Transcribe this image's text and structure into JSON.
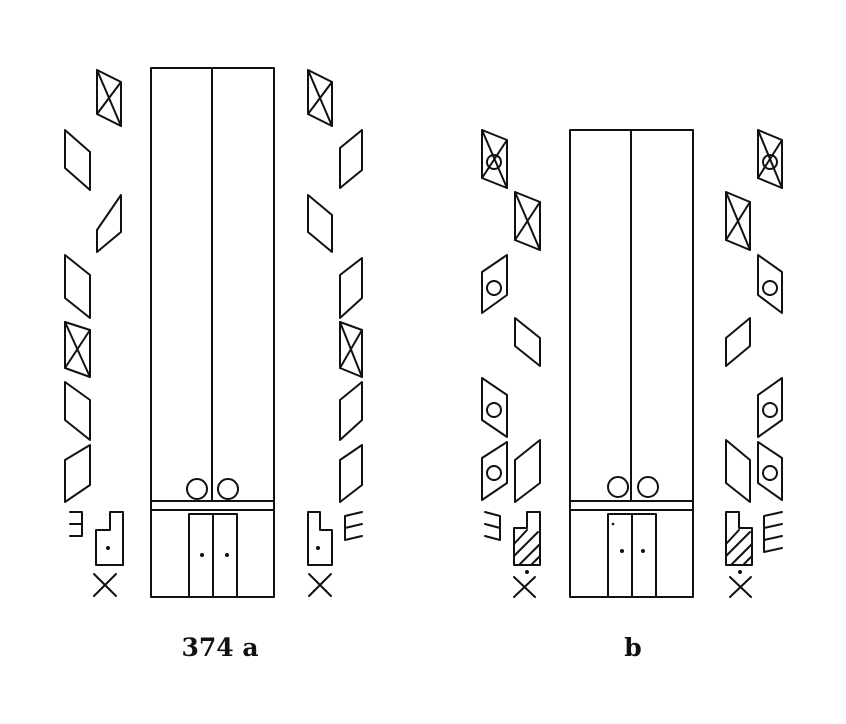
{
  "figure": {
    "captions": {
      "left": "374 a",
      "right": "b"
    },
    "colors": {
      "ink": "#111111",
      "paper": "#ffffff"
    }
  }
}
